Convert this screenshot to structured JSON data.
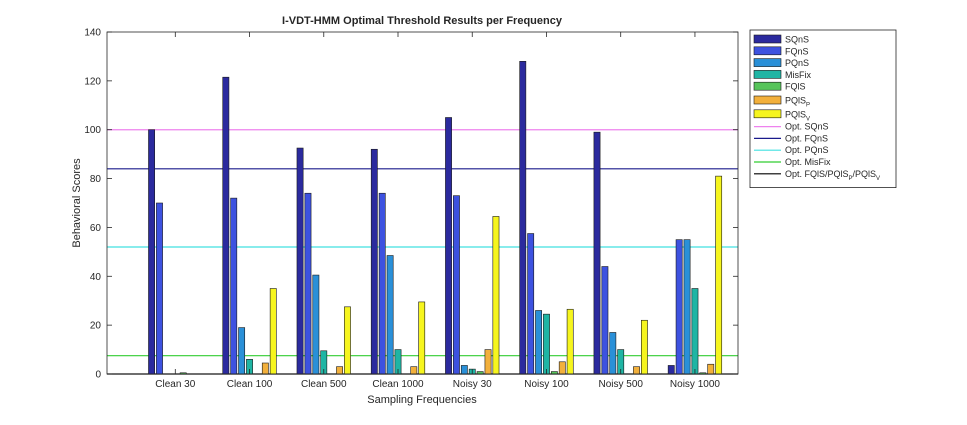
{
  "chart_data": {
    "type": "bar",
    "title": "I-VDT-HMM Optimal Threshold Results per Frequency",
    "xlabel": "Sampling Frequencies",
    "ylabel": "Behavioral Scores",
    "ylim": [
      0,
      140
    ],
    "yticks": [
      0,
      20,
      40,
      60,
      80,
      100,
      120,
      140
    ],
    "grid": false,
    "legend_position": "outside-right",
    "categories": [
      "Clean 30",
      "Clean 100",
      "Clean 500",
      "Clean 1000",
      "Noisy 30",
      "Noisy 100",
      "Noisy 500",
      "Noisy 1000"
    ],
    "series": [
      {
        "name": "SQnS",
        "color": "#2b2a9e",
        "values": [
          100,
          121.5,
          92.5,
          92,
          105,
          128,
          99,
          3.5
        ]
      },
      {
        "name": "FQnS",
        "color": "#3d52e0",
        "values": [
          70,
          72,
          74,
          74,
          73,
          57.5,
          44,
          55
        ]
      },
      {
        "name": "PQnS",
        "color": "#2a90d8",
        "values": [
          0,
          19,
          40.5,
          48.5,
          3.5,
          26,
          17,
          55
        ]
      },
      {
        "name": "MisFix",
        "color": "#1fb5a4",
        "values": [
          0,
          6,
          9.5,
          10,
          2,
          24.5,
          10,
          35
        ]
      },
      {
        "name": "FQlS",
        "color": "#56c45a",
        "values": [
          0.5,
          0,
          0,
          0,
          1,
          1,
          0,
          0.5
        ]
      },
      {
        "name": "PQlS",
        "subscript": "P",
        "color": "#f2b03c",
        "values": [
          0,
          4.5,
          3,
          3,
          10,
          5,
          3,
          4
        ]
      },
      {
        "name": "PQlS",
        "subscript": "V",
        "color": "#f6f51e",
        "values": [
          0,
          35,
          27.5,
          29.5,
          64.5,
          26.5,
          22,
          81
        ]
      }
    ],
    "reference_lines": [
      {
        "name": "Opt. SQnS",
        "value": 100,
        "color": "#ee82ee"
      },
      {
        "name": "Opt. FQnS",
        "value": 84,
        "color": "#1a1a8c"
      },
      {
        "name": "Opt. PQnS",
        "value": 52,
        "color": "#40e0e0"
      },
      {
        "name": "Opt. MisFix",
        "value": 7.5,
        "color": "#32cd32"
      },
      {
        "name": "Opt. FQlS/PQlS",
        "name_mid": "/PQlS",
        "sub1": "P",
        "sub2": "V",
        "value": 0,
        "color": "#000000"
      }
    ]
  }
}
